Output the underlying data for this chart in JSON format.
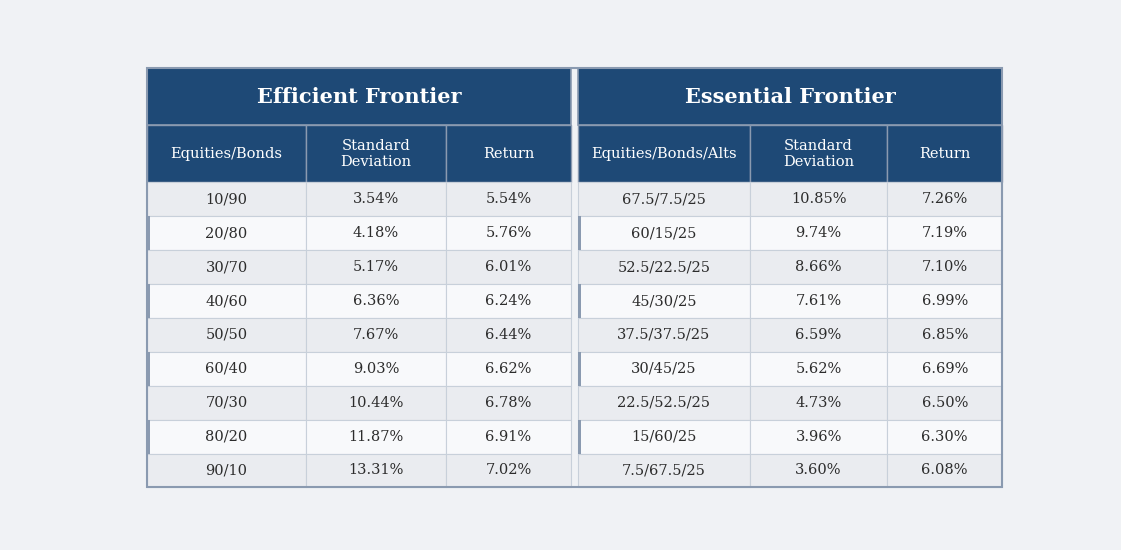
{
  "title_left": "Efficient Frontier",
  "title_right": "Essential Frontier",
  "header_left": [
    "Equities/Bonds",
    "Standard\nDeviation",
    "Return"
  ],
  "header_right": [
    "Equities/Bonds/Alts",
    "Standard\nDeviation",
    "Return"
  ],
  "rows_left": [
    [
      "10/90",
      "3.54%",
      "5.54%"
    ],
    [
      "20/80",
      "4.18%",
      "5.76%"
    ],
    [
      "30/70",
      "5.17%",
      "6.01%"
    ],
    [
      "40/60",
      "6.36%",
      "6.24%"
    ],
    [
      "50/50",
      "7.67%",
      "6.44%"
    ],
    [
      "60/40",
      "9.03%",
      "6.62%"
    ],
    [
      "70/30",
      "10.44%",
      "6.78%"
    ],
    [
      "80/20",
      "11.87%",
      "6.91%"
    ],
    [
      "90/10",
      "13.31%",
      "7.02%"
    ]
  ],
  "rows_right": [
    [
      "67.5/7.5/25",
      "10.85%",
      "7.26%"
    ],
    [
      "60/15/25",
      "9.74%",
      "7.19%"
    ],
    [
      "52.5/22.5/25",
      "8.66%",
      "7.10%"
    ],
    [
      "45/30/25",
      "7.61%",
      "6.99%"
    ],
    [
      "37.5/37.5/25",
      "6.59%",
      "6.85%"
    ],
    [
      "30/45/25",
      "5.62%",
      "6.69%"
    ],
    [
      "22.5/52.5/25",
      "4.73%",
      "6.50%"
    ],
    [
      "15/60/25",
      "3.96%",
      "6.30%"
    ],
    [
      "7.5/67.5/25",
      "3.60%",
      "6.08%"
    ]
  ],
  "header_bg_color": "#1e4976",
  "title_bg_color": "#1e4976",
  "header_text_color": "#ffffff",
  "title_text_color": "#ffffff",
  "cell_text_color": "#2c2c2c",
  "border_color": "#c8d0da",
  "outer_border_color": "#8a9ab0",
  "background_color": "#f0f2f5",
  "row_even_color": "#eaecf0",
  "row_odd_color": "#f8f9fb",
  "accent_border_color": "#8a9ab0",
  "mid_gap_color": "#8a9ab0"
}
